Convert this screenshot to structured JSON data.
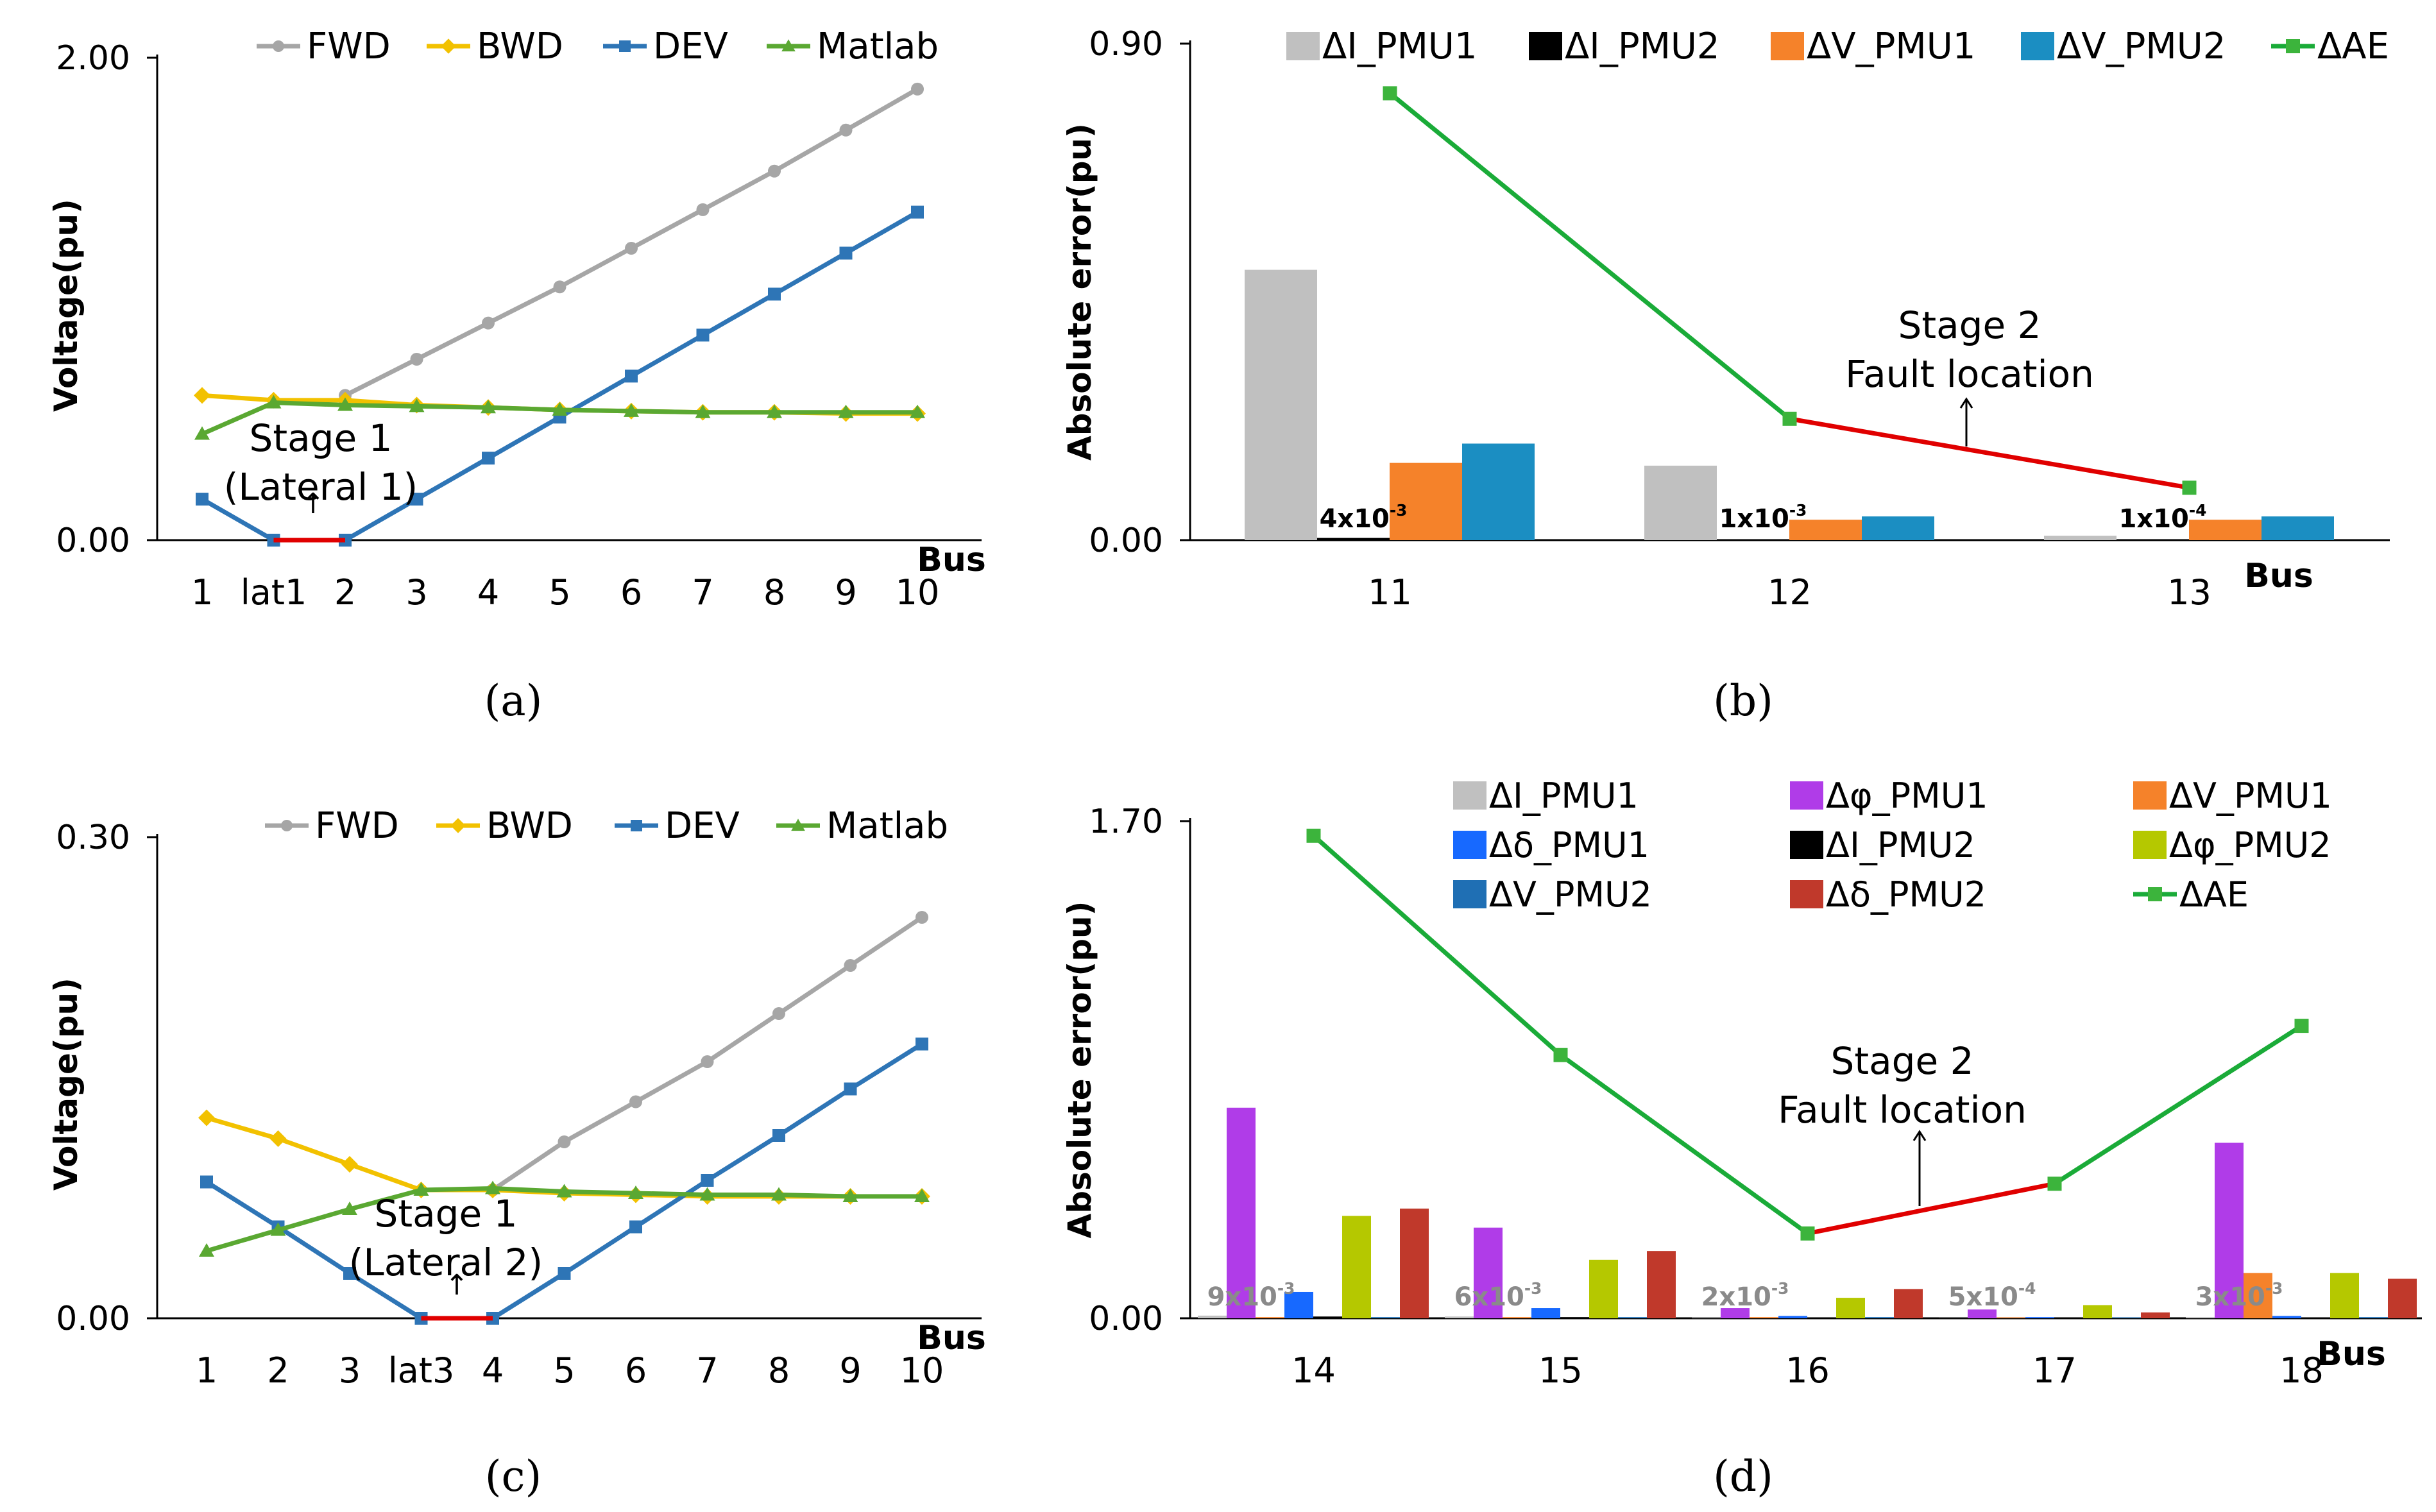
{
  "figure": {
    "panel_labels": [
      "(a)",
      "(b)",
      "(c)",
      "(d)"
    ],
    "x_title": "Bus"
  },
  "colors": {
    "FWD": "#a6a6a6",
    "BWD": "#f2c100",
    "DEV": "#2e75b6",
    "Matlab": "#5aa832",
    "stage_line": "#e00000",
    "AE": "#1aab38",
    "AE_marker": "#3cb43c",
    "I_PMU1": "#c0c0c0",
    "I_PMU2": "#000000",
    "V_PMU1": "#f5822a",
    "V_PMU2": "#1b8ec2",
    "phi_PMU1": "#b03ce8",
    "delta_PMU1": "#1769ff",
    "phi_PMU2": "#b5c800",
    "delta_PMU2": "#c0392b",
    "V_PMU2_d": "#1f6fb4",
    "axis": "#000000",
    "label_gray": "#8a8a8a"
  },
  "chart_data": [
    {
      "id": "a",
      "type": "line",
      "title": "",
      "xlabel": "Bus",
      "ylabel": "Voltage(pu)",
      "ylim": [
        0,
        2
      ],
      "yticks": [
        "0.00",
        "2.00"
      ],
      "categories": [
        "1",
        "lat1",
        "2",
        "3",
        "4",
        "5",
        "6",
        "7",
        "8",
        "9",
        "10"
      ],
      "series": [
        {
          "name": "FWD",
          "values": [
            null,
            null,
            0.6,
            0.75,
            0.9,
            1.05,
            1.21,
            1.37,
            1.53,
            1.7,
            1.87
          ]
        },
        {
          "name": "BWD",
          "values": [
            0.6,
            0.58,
            0.58,
            0.56,
            0.55,
            0.54,
            0.535,
            0.53,
            0.53,
            0.525,
            0.525
          ]
        },
        {
          "name": "DEV",
          "values": [
            0.17,
            0.0,
            0.0,
            0.17,
            0.34,
            0.51,
            0.68,
            0.85,
            1.02,
            1.19,
            1.36
          ]
        },
        {
          "name": "Matlab",
          "values": [
            0.44,
            0.57,
            0.56,
            0.555,
            0.55,
            0.54,
            0.535,
            0.53,
            0.53,
            0.53,
            0.53
          ]
        }
      ],
      "stage_segment": [
        1,
        2
      ],
      "annotation": {
        "line1": "Stage 1",
        "line2": "(Lateral 1)",
        "arrow": "↑"
      }
    },
    {
      "id": "b",
      "type": "bar",
      "title": "",
      "xlabel": "Bus",
      "ylabel": "Absolute error(pu)",
      "ylim": [
        0,
        0.9
      ],
      "yticks": [
        "0.00",
        "0.90"
      ],
      "categories": [
        "11",
        "12",
        "13"
      ],
      "series": [
        {
          "name": "ΔI_PMU1",
          "values": [
            0.49,
            0.135,
            0.008
          ]
        },
        {
          "name": "ΔI_PMU2",
          "values": [
            0.004,
            0.001,
            0.0001
          ]
        },
        {
          "name": "ΔV_PMU1",
          "values": [
            0.14,
            0.037,
            0.037
          ]
        },
        {
          "name": "ΔV_PMU2",
          "values": [
            0.175,
            0.043,
            0.043
          ]
        }
      ],
      "line_series": {
        "name": "ΔAE",
        "values": [
          0.81,
          0.22,
          0.095
        ]
      },
      "bar_labels": [
        {
          "base": "4x10",
          "exp": "-3"
        },
        {
          "base": "1x10",
          "exp": "-3"
        },
        {
          "base": "1x10",
          "exp": "-4"
        }
      ],
      "annotation": {
        "line1": "Stage 2",
        "line2": "Fault location",
        "arrow": "↑"
      }
    },
    {
      "id": "c",
      "type": "line",
      "title": "",
      "xlabel": "Bus",
      "ylabel": "Voltage(pu)",
      "ylim": [
        0,
        0.3
      ],
      "yticks": [
        "0.00",
        "0.30"
      ],
      "categories": [
        "1",
        "2",
        "3",
        "lat3",
        "4",
        "5",
        "6",
        "7",
        "8",
        "9",
        "10"
      ],
      "series": [
        {
          "name": "FWD",
          "values": [
            null,
            null,
            null,
            null,
            0.08,
            0.11,
            0.135,
            0.16,
            0.19,
            0.22,
            0.25
          ]
        },
        {
          "name": "BWD",
          "values": [
            0.125,
            0.112,
            0.096,
            0.08,
            0.08,
            0.078,
            0.077,
            0.076,
            0.076,
            0.076,
            0.076
          ]
        },
        {
          "name": "DEV",
          "values": [
            0.085,
            0.057,
            0.028,
            0.0,
            0.0,
            0.028,
            0.057,
            0.086,
            0.114,
            0.143,
            0.171
          ]
        },
        {
          "name": "Matlab",
          "values": [
            0.042,
            0.055,
            0.068,
            0.08,
            0.081,
            0.079,
            0.078,
            0.077,
            0.077,
            0.076,
            0.076
          ]
        }
      ],
      "stage_segment": [
        3,
        4
      ],
      "annotation": {
        "line1": "Stage 1",
        "line2": "(Lateral 2)",
        "arrow": "↑"
      }
    },
    {
      "id": "d",
      "type": "bar",
      "title": "",
      "xlabel": "Bus",
      "ylabel": "Absolute error(pu)",
      "ylim": [
        0,
        1.7
      ],
      "yticks": [
        "0.00",
        "1.70"
      ],
      "categories": [
        "14",
        "15",
        "16",
        "17",
        "18"
      ],
      "series": [
        {
          "name": "ΔI_PMU1",
          "values": [
            0.009,
            0.006,
            0.002,
            0.0005,
            0.003
          ]
        },
        {
          "name": "Δφ_PMU1",
          "values": [
            0.72,
            0.31,
            0.035,
            0.03,
            0.6
          ]
        },
        {
          "name": "ΔV_PMU1",
          "values": [
            0.004,
            0.004,
            0.004,
            0.003,
            0.155
          ]
        },
        {
          "name": "Δδ_PMU1",
          "values": [
            0.09,
            0.035,
            0.008,
            0.004,
            0.008
          ]
        },
        {
          "name": "ΔI_PMU2",
          "values": [
            0.006,
            0.004,
            0.002,
            0.0005,
            0.002
          ]
        },
        {
          "name": "Δφ_PMU2",
          "values": [
            0.35,
            0.2,
            0.07,
            0.045,
            0.155
          ]
        },
        {
          "name": "ΔV_PMU2",
          "values": [
            0.004,
            0.004,
            0.004,
            0.003,
            0.004
          ]
        },
        {
          "name": "Δδ_PMU2",
          "values": [
            0.375,
            0.23,
            0.1,
            0.02,
            0.135
          ]
        }
      ],
      "line_series": {
        "name": "ΔAE",
        "values": [
          1.65,
          0.9,
          0.29,
          0.46,
          1.0
        ]
      },
      "bar_labels": [
        {
          "base": "9x10",
          "exp": "-3"
        },
        {
          "base": "6x10",
          "exp": "-3"
        },
        {
          "base": "2x10",
          "exp": "-3"
        },
        {
          "base": "5x10",
          "exp": "-4"
        },
        {
          "base": "3x10",
          "exp": "-3"
        }
      ],
      "annotation": {
        "line1": "Stage 2",
        "line2": "Fault location",
        "arrow": "↑"
      }
    }
  ]
}
